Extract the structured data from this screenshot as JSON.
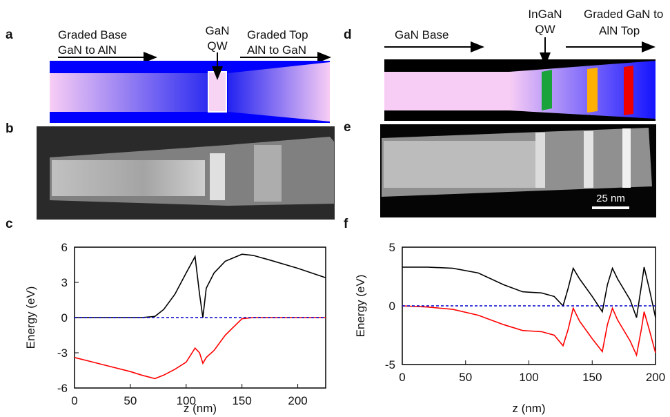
{
  "panels": {
    "a": {
      "label": "a",
      "base": [
        "Graded  Base",
        "GaN to AlN"
      ],
      "qw": [
        "GaN",
        "QW"
      ],
      "top": [
        "Graded Top",
        "AlN to GaN"
      ]
    },
    "b": {
      "label": "b"
    },
    "d": {
      "label": "d",
      "base": [
        "GaN  Base"
      ],
      "qw": [
        "InGaN",
        "QW"
      ],
      "top": [
        "Graded GaN to",
        "AlN Top"
      ]
    },
    "e": {
      "label": "e",
      "scale_bar": "25 nm"
    }
  },
  "chart_data": [
    {
      "type": "line",
      "panel": "c",
      "ylabel": "Energy (eV)",
      "xlabel": "z (nm)",
      "x": [
        0,
        25,
        50,
        60,
        72,
        80,
        90,
        100,
        108,
        112,
        115,
        118,
        125,
        135,
        150,
        160,
        175,
        200,
        225
      ],
      "series": [
        {
          "color": "#000000",
          "values": [
            0,
            0,
            0,
            0,
            0.1,
            0.7,
            2,
            3.8,
            5.2,
            2,
            0,
            2.5,
            3.8,
            4.8,
            5.4,
            5.3,
            4.9,
            4.2,
            3.4
          ]
        },
        {
          "color": "#ff0000",
          "values": [
            -3.4,
            -4,
            -4.6,
            -4.9,
            -5.2,
            -4.9,
            -4.4,
            -3.8,
            -2.6,
            -3,
            -3.9,
            -3.4,
            -2.8,
            -1.5,
            -0.1,
            0,
            0,
            0,
            0
          ]
        },
        {
          "color": "#0000cc",
          "dashed": true,
          "values": [
            0,
            0,
            0,
            0,
            0,
            0,
            0,
            0,
            0,
            0,
            0,
            0,
            0,
            0,
            0,
            0,
            0,
            0,
            0
          ]
        }
      ],
      "xlim": [
        0,
        225
      ],
      "ylim": [
        -6,
        6
      ],
      "xticks": [
        0,
        50,
        100,
        150,
        200
      ],
      "yticks": [
        -6,
        -3,
        0,
        3,
        6
      ]
    },
    {
      "type": "line",
      "panel": "f",
      "ylabel": "Energy (eV)",
      "xlabel": "z (nm)",
      "x": [
        0,
        20,
        40,
        60,
        80,
        95,
        110,
        120,
        127,
        131,
        135,
        140,
        150,
        158,
        162,
        166,
        170,
        180,
        185,
        189,
        191,
        195,
        200
      ],
      "series": [
        {
          "color": "#000000",
          "values": [
            3.3,
            3.3,
            3.2,
            2.8,
            1.8,
            1.2,
            1.1,
            0.8,
            0,
            1.5,
            3.2,
            2.3,
            0.8,
            -0.5,
            1.8,
            3.2,
            2.3,
            0.5,
            -1,
            1.8,
            3.3,
            1.5,
            -1
          ]
        },
        {
          "color": "#ff0000",
          "values": [
            0,
            -0.1,
            -0.3,
            -0.8,
            -1.6,
            -2.1,
            -2.2,
            -2.5,
            -3.4,
            -2,
            -0.2,
            -1.3,
            -2.8,
            -3.9,
            -1.6,
            -0.2,
            -1.2,
            -3,
            -4.2,
            -1.9,
            -0.5,
            -2,
            -4
          ]
        },
        {
          "color": "#0000cc",
          "dashed": true,
          "values": [
            0,
            0,
            0,
            0,
            0,
            0,
            0,
            0,
            0,
            0,
            0,
            0,
            0,
            0,
            0,
            0,
            0,
            0,
            0,
            0,
            0,
            0,
            0
          ]
        }
      ],
      "xlim": [
        0,
        200
      ],
      "ylim": [
        -5,
        5
      ],
      "xticks": [
        0,
        50,
        100,
        150,
        200
      ],
      "yticks": [
        -5,
        0,
        5
      ]
    }
  ]
}
